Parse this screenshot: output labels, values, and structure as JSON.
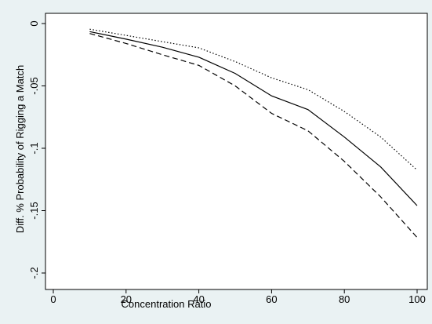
{
  "chart_data": {
    "type": "line",
    "title": "",
    "xlabel": "Concentration Ratio",
    "ylabel": "Diff. % Probability of Rigging a Match",
    "xlim": [
      0,
      100
    ],
    "ylim": [
      -0.2,
      0
    ],
    "xticks": [
      0,
      20,
      40,
      60,
      80,
      100
    ],
    "xtick_labels": [
      "0",
      "20",
      "40",
      "60",
      "80",
      "100"
    ],
    "yticks": [
      0,
      -0.05,
      -0.1,
      -0.15,
      -0.2
    ],
    "ytick_labels": [
      "0",
      "-.05",
      "-.1",
      "-.15",
      "-.2"
    ],
    "grid": false,
    "legend": "none",
    "x": [
      10,
      20,
      30,
      40,
      50,
      60,
      70,
      80,
      90,
      100
    ],
    "series": [
      {
        "style": "solid",
        "color": "#000000",
        "values": [
          -0.0065,
          -0.0125,
          -0.019,
          -0.027,
          -0.04,
          -0.058,
          -0.069,
          -0.091,
          -0.115,
          -0.146
        ]
      },
      {
        "style": "dotted",
        "color": "#000000",
        "values": [
          -0.0045,
          -0.0095,
          -0.0145,
          -0.0195,
          -0.0305,
          -0.0435,
          -0.053,
          -0.0705,
          -0.091,
          -0.1175
        ]
      },
      {
        "style": "dashed",
        "color": "#000000",
        "values": [
          -0.008,
          -0.016,
          -0.025,
          -0.0335,
          -0.05,
          -0.072,
          -0.086,
          -0.1105,
          -0.139,
          -0.1715
        ]
      }
    ]
  }
}
